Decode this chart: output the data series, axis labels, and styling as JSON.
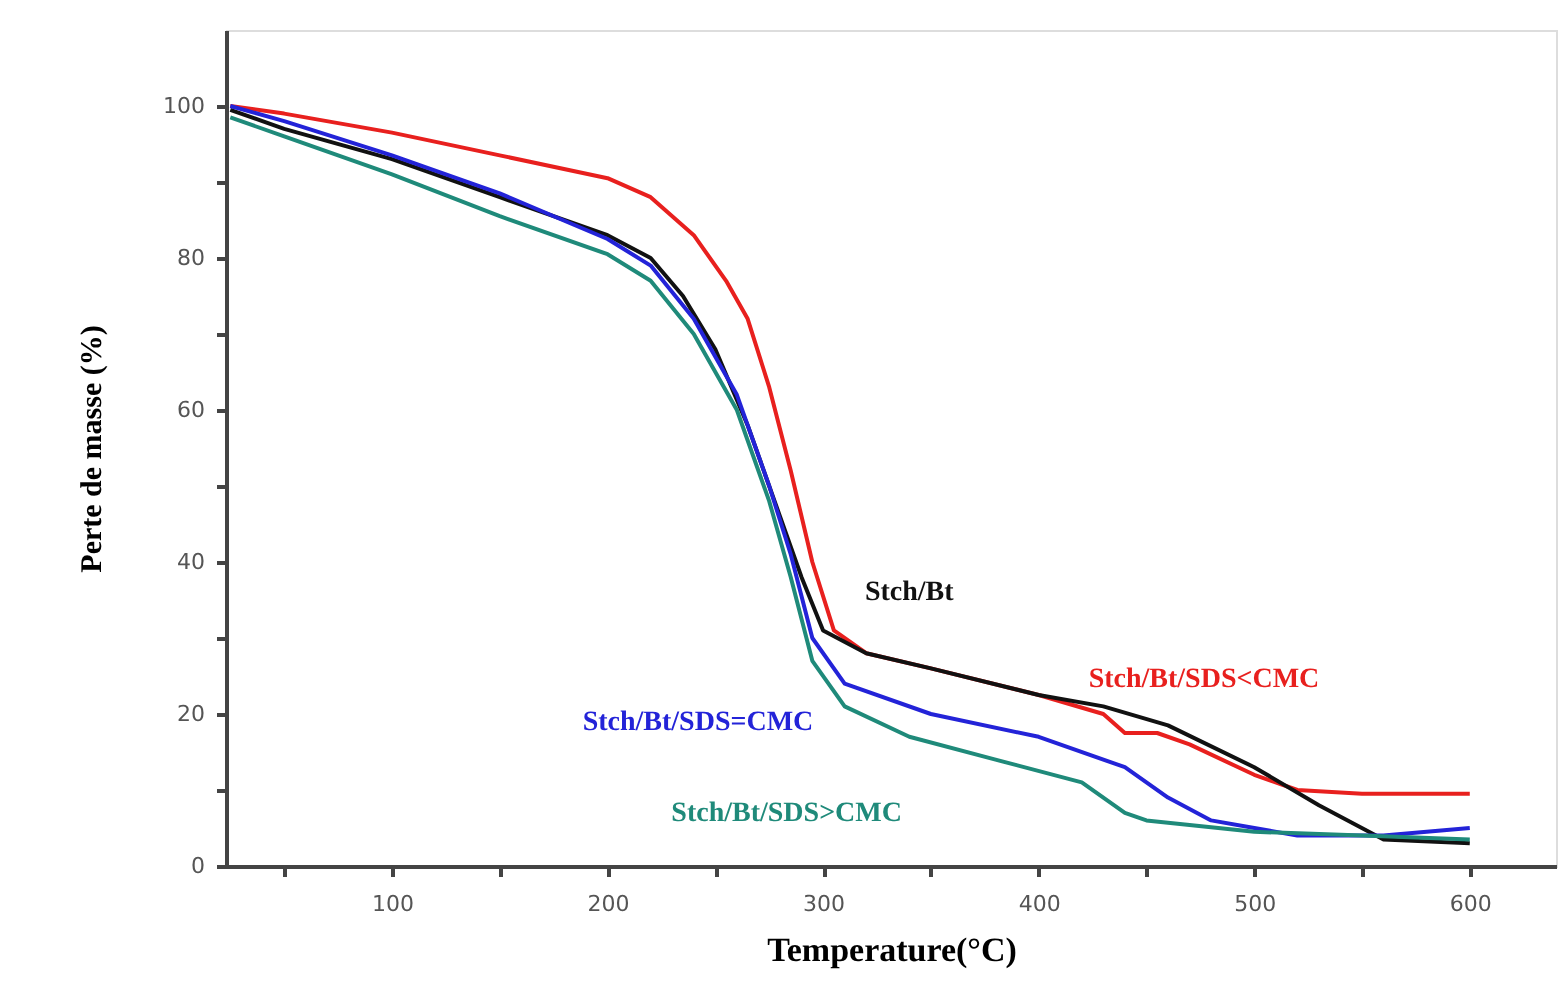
{
  "chart_data": {
    "type": "line",
    "xlabel": "Temperature(°C)",
    "ylabel": "Perte de masse (%)",
    "xlim": [
      23,
      640
    ],
    "ylim": [
      0,
      110
    ],
    "xticks": [
      {
        "value": 50,
        "label": null
      },
      100,
      {
        "value": 150,
        "label": null
      },
      200,
      {
        "value": 250,
        "label": null
      },
      300,
      {
        "value": 350,
        "label": null
      },
      400,
      {
        "value": 450,
        "label": null
      },
      500,
      {
        "value": 550,
        "label": null
      },
      600
    ],
    "yticks": [
      0,
      {
        "value": 10,
        "label": null
      },
      20,
      {
        "value": 30,
        "label": null
      },
      40,
      {
        "value": 50,
        "label": null
      },
      60,
      {
        "value": 70,
        "label": null
      },
      80,
      {
        "value": 90,
        "label": null
      },
      100
    ],
    "grid": false,
    "marker": "none",
    "line_style": "solid",
    "series": [
      {
        "name": "Stch/Bt/SDS<CMC",
        "color": "#e8201e",
        "x": [
          25,
          50,
          100,
          150,
          200,
          220,
          240,
          255,
          265,
          275,
          285,
          295,
          305,
          320,
          350,
          400,
          430,
          440,
          455,
          470,
          500,
          520,
          550,
          600
        ],
        "values": [
          100,
          99,
          96.5,
          93.5,
          90.5,
          88,
          83,
          77,
          72,
          63,
          52,
          40,
          31,
          28,
          26,
          22.5,
          20,
          17.5,
          17.5,
          16,
          12,
          10,
          9.5,
          9.5
        ]
      },
      {
        "name": "Stch/Bt",
        "color": "#111111",
        "x": [
          25,
          50,
          100,
          150,
          200,
          220,
          235,
          250,
          265,
          280,
          290,
          300,
          320,
          350,
          400,
          430,
          460,
          500,
          530,
          560,
          600
        ],
        "values": [
          99.5,
          97,
          93,
          88,
          83,
          80,
          75,
          68,
          58,
          46,
          38,
          31,
          28,
          26,
          22.5,
          21,
          18.5,
          13,
          8,
          3.5,
          3
        ]
      },
      {
        "name": "Stch/Bt/SDS=CMC",
        "color": "#2323d8",
        "x": [
          25,
          50,
          100,
          150,
          200,
          220,
          240,
          260,
          275,
          285,
          295,
          310,
          350,
          400,
          440,
          460,
          480,
          520,
          560,
          600
        ],
        "values": [
          100,
          98,
          93.5,
          88.5,
          82.5,
          79,
          72,
          62,
          50,
          41,
          30,
          24,
          20,
          17,
          13,
          9,
          6,
          4,
          4,
          5
        ]
      },
      {
        "name": "Stch/Bt/SDS>CMC",
        "color": "#1f8a7a",
        "x": [
          25,
          50,
          100,
          150,
          200,
          220,
          240,
          260,
          275,
          285,
          295,
          310,
          340,
          380,
          420,
          440,
          450,
          500,
          550,
          600
        ],
        "values": [
          98.5,
          96,
          91,
          85.5,
          80.5,
          77,
          70,
          60,
          48,
          38,
          27,
          21,
          17,
          14,
          11,
          7,
          6,
          4.5,
          4,
          3.5
        ]
      }
    ]
  }
}
